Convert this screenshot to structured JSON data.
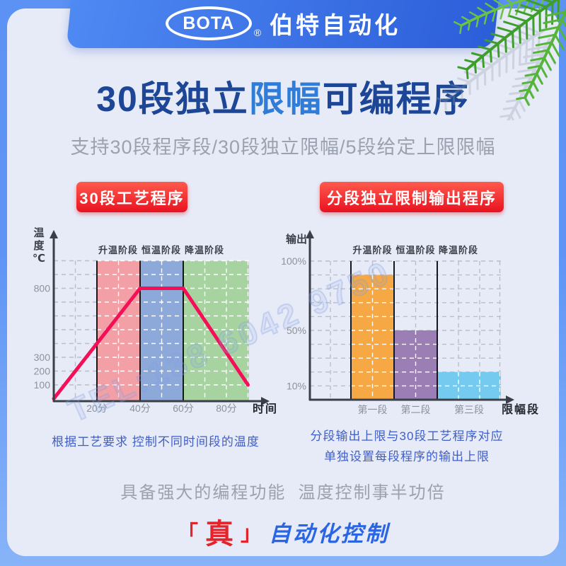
{
  "header": {
    "logo_text": "BOTA",
    "registered_mark": "®",
    "brand_name": "伯特自动化"
  },
  "title": {
    "part1": "30段独立",
    "highlight": "限幅",
    "part2": "可编程序"
  },
  "subtitle": "支持30段程序段/30段独立限幅/5段给定上限限幅",
  "badges": {
    "left": "30段工艺程序",
    "right": "分段独立限制输出程序"
  },
  "captions": {
    "left": "根据工艺要求 控制不同时间段的温度",
    "right_line1": "分段输出上限与30段工艺程序对应",
    "right_line2": "单独设置每段程序的输出上限"
  },
  "footer": {
    "feature_text": "具备强大的编程功能  温度控制事半功倍",
    "slogan": {
      "bracket_left": "「",
      "emphasis": "真",
      "bracket_right": "」",
      "suffix": "自动化控制"
    }
  },
  "watermark": "TEL:138 6042 9750",
  "colors": {
    "title_blue": "#1d4796",
    "title_highlight_blue": "#2f7cd9",
    "badge_red": "#e81220",
    "caption_blue": "#3f5ec6",
    "slogan_red": "#e3242c",
    "slogan_blue": "#2a66e3",
    "frame_blue": "#5b92f4",
    "card_bg": "#e7ebf7"
  },
  "chart_data": [
    {
      "type": "line",
      "title_badge": "30段工艺程序",
      "ylabel": "温度℃",
      "xlabel": "时间",
      "phase_labels": [
        "升温阶段",
        "恒温阶段",
        "降温阶段"
      ],
      "phase_colors": [
        "#f2a0a6",
        "#8ca9da",
        "#a7d3a0"
      ],
      "phase_x_ranges_min": [
        [
          20,
          40
        ],
        [
          40,
          60
        ],
        [
          60,
          90.5
        ]
      ],
      "x_ticks": [
        {
          "label": "20分",
          "min": 20
        },
        {
          "label": "40分",
          "min": 40
        },
        {
          "label": "60分",
          "min": 60
        },
        {
          "label": "80分",
          "min": 80
        }
      ],
      "y_ticks": [
        800,
        300,
        200,
        100
      ],
      "y_range": [
        0,
        1000
      ],
      "line_color": "#f50f57",
      "profile_points_min_degC": [
        [
          0,
          0
        ],
        [
          40,
          800
        ],
        [
          60,
          800
        ],
        [
          90,
          100
        ]
      ],
      "grid": true
    },
    {
      "type": "bar",
      "title_badge": "分段独立限制输出程序",
      "ylabel": "输出",
      "xlabel": "限幅段",
      "phase_labels": [
        "升温阶段",
        "恒温阶段",
        "降温阶段"
      ],
      "categories": [
        "第一段",
        "第二段",
        "第三段"
      ],
      "values_percent": [
        90,
        50,
        20
      ],
      "bar_colors": [
        "#f5a844",
        "#9b7eb4",
        "#75caf0"
      ],
      "y_ticks": [
        {
          "label": "100%",
          "value": 100
        },
        {
          "label": "50%",
          "value": 50
        },
        {
          "label": "10%",
          "value": 10
        }
      ],
      "y_range": [
        0,
        100
      ],
      "grid": true
    }
  ]
}
